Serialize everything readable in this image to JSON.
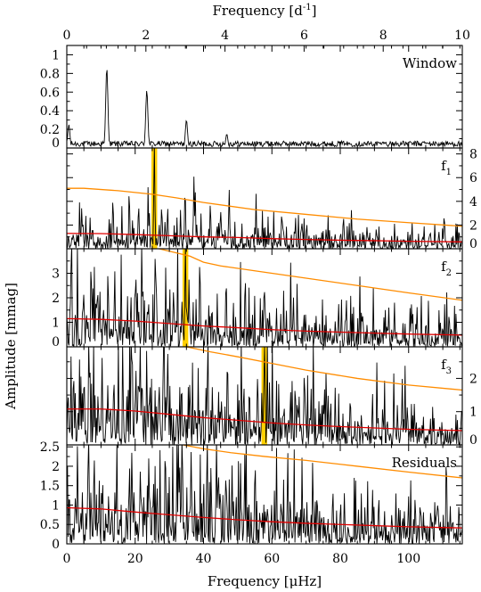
{
  "figure": {
    "top_axis_label": "Frequency [d",
    "top_axis_label_sup": "-1",
    "top_axis_label_end": "]",
    "bottom_axis_label": "Frequency [μHz]",
    "y_axis_label": "Amplitude [mmag]",
    "colors": {
      "spectrum": "#000000",
      "significance": "#ff8c00",
      "noise": "#e00000",
      "highlight": "#ffd000"
    }
  },
  "chart_data": [
    {
      "type": "line",
      "panel": "window",
      "label": "Window",
      "xlabel": "Frequency [μHz]",
      "xlim": [
        0,
        115.7
      ],
      "top_xlabel": "Frequency [d-1]",
      "top_xlim": [
        0,
        10
      ],
      "top_ticks": [
        0,
        2,
        4,
        6,
        8,
        10
      ],
      "ylim": [
        0,
        1.1
      ],
      "yticks": [
        0,
        0.2,
        0.4,
        0.6,
        0.8,
        1
      ],
      "ytick_side": "left",
      "peaks": [
        {
          "x": 0.6,
          "y": 0.25
        },
        {
          "x": 11.7,
          "y": 0.86
        },
        {
          "x": 23.4,
          "y": 0.62
        },
        {
          "x": 35.0,
          "y": 0.3
        },
        {
          "x": 46.8,
          "y": 0.15
        },
        {
          "x": 58.3,
          "y": 0.07
        },
        {
          "x": 70.0,
          "y": 0.05
        },
        {
          "x": 81.5,
          "y": 0.05
        },
        {
          "x": 93.0,
          "y": 0.06
        },
        {
          "x": 104.5,
          "y": 0.07
        }
      ],
      "noise_floor": 0.05
    },
    {
      "type": "line",
      "panel": "f1",
      "label": "f",
      "label_sub": "1",
      "ylim": [
        0,
        8.5
      ],
      "yticks": [
        0,
        2,
        4,
        6,
        8
      ],
      "ytick_side": "right",
      "highlight_x": 25.6,
      "peaks": [
        {
          "x": 25.6,
          "y": 9.0
        },
        {
          "x": 21.0,
          "y": 3.8
        },
        {
          "x": 13.5,
          "y": 4.3
        },
        {
          "x": 34.6,
          "y": 5.2
        },
        {
          "x": 37.2,
          "y": 6.1
        },
        {
          "x": 47.5,
          "y": 5.0
        },
        {
          "x": 45.0,
          "y": 3.2
        },
        {
          "x": 42.0,
          "y": 3.9
        },
        {
          "x": 29.5,
          "y": 3.5
        }
      ],
      "noise_floor": 1.3,
      "significance": {
        "x": [
          0,
          5,
          15,
          25,
          32,
          40,
          55,
          70,
          85,
          100,
          115.7
        ],
        "y": [
          5.1,
          5.1,
          4.9,
          4.6,
          4.3,
          3.9,
          3.3,
          2.9,
          2.5,
          2.2,
          1.9
        ]
      },
      "noise": {
        "x": [
          0,
          10,
          20,
          30,
          40,
          50,
          60,
          70,
          80,
          90,
          100,
          115.7
        ],
        "y": [
          1.3,
          1.28,
          1.2,
          1.1,
          1.0,
          0.95,
          0.85,
          0.78,
          0.72,
          0.68,
          0.63,
          0.58
        ]
      }
    },
    {
      "type": "line",
      "panel": "f2",
      "label": "f",
      "label_sub": "2",
      "ylim": [
        0,
        4
      ],
      "yticks": [
        0,
        1,
        2,
        3
      ],
      "ytick_side": "left",
      "highlight_x": 34.7,
      "peaks": [
        {
          "x": 34.7,
          "y": 4.3
        },
        {
          "x": 46.6,
          "y": 2.85
        },
        {
          "x": 57.9,
          "y": 2.35
        },
        {
          "x": 22.0,
          "y": 2.6
        },
        {
          "x": 20.0,
          "y": 2.3
        },
        {
          "x": 14.0,
          "y": 2.6
        },
        {
          "x": 9.0,
          "y": 2.5
        },
        {
          "x": 26.0,
          "y": 2.9
        },
        {
          "x": 5.0,
          "y": 2.2
        }
      ],
      "noise_floor": 1.1,
      "significance": {
        "x": [
          24,
          30,
          36,
          40,
          45,
          55,
          70,
          85,
          100,
          115.7
        ],
        "y": [
          4.1,
          3.9,
          3.7,
          3.45,
          3.3,
          3.1,
          2.8,
          2.5,
          2.2,
          1.9
        ]
      },
      "noise": {
        "x": [
          0,
          10,
          20,
          30,
          40,
          50,
          60,
          70,
          80,
          90,
          100,
          115.7
        ],
        "y": [
          1.15,
          1.12,
          1.05,
          0.95,
          0.85,
          0.78,
          0.7,
          0.64,
          0.6,
          0.56,
          0.52,
          0.48
        ]
      }
    },
    {
      "type": "line",
      "panel": "f3",
      "label": "f",
      "label_sub": "3",
      "ylim": [
        0,
        2.95
      ],
      "yticks": [
        0,
        1,
        2
      ],
      "ytick_side": "right",
      "highlight_x": 57.8,
      "peaks": [
        {
          "x": 57.8,
          "y": 3.1
        },
        {
          "x": 47.0,
          "y": 2.7
        },
        {
          "x": 69.5,
          "y": 2.3
        },
        {
          "x": 22.0,
          "y": 2.1
        },
        {
          "x": 27.0,
          "y": 1.9
        },
        {
          "x": 36.0,
          "y": 1.9
        },
        {
          "x": 5.0,
          "y": 1.75
        },
        {
          "x": 12.0,
          "y": 1.8
        }
      ],
      "noise_floor": 1.0,
      "significance": {
        "x": [
          28,
          35,
          42,
          50,
          60,
          70,
          85,
          100,
          115.7
        ],
        "y": [
          3.05,
          2.95,
          2.8,
          2.65,
          2.45,
          2.25,
          2.0,
          1.8,
          1.65
        ]
      },
      "noise": {
        "x": [
          0,
          10,
          20,
          30,
          40,
          50,
          60,
          70,
          80,
          90,
          100,
          115.7
        ],
        "y": [
          1.08,
          1.08,
          1.02,
          0.92,
          0.82,
          0.74,
          0.66,
          0.6,
          0.55,
          0.51,
          0.47,
          0.43
        ]
      }
    },
    {
      "type": "line",
      "panel": "residuals",
      "label": "Residuals",
      "ylim": [
        0,
        2.55
      ],
      "yticks": [
        0,
        0.5,
        1,
        1.5,
        2,
        2.5
      ],
      "ytick_side": "left",
      "xticks": [
        0,
        20,
        40,
        60,
        80,
        100
      ],
      "peaks": [
        {
          "x": 8.0,
          "y": 2.3
        },
        {
          "x": 19.0,
          "y": 2.35
        },
        {
          "x": 24.0,
          "y": 2.25
        },
        {
          "x": 33.0,
          "y": 2.1
        },
        {
          "x": 41.0,
          "y": 1.9
        },
        {
          "x": 55.0,
          "y": 1.6
        }
      ],
      "noise_floor": 0.92,
      "significance": {
        "x": [
          34,
          40,
          48,
          58,
          70,
          85,
          100,
          115.7
        ],
        "y": [
          2.55,
          2.45,
          2.35,
          2.25,
          2.15,
          2.0,
          1.85,
          1.7
        ]
      },
      "noise": {
        "x": [
          0,
          10,
          20,
          30,
          40,
          50,
          60,
          70,
          80,
          90,
          100,
          115.7
        ],
        "y": [
          0.93,
          0.9,
          0.82,
          0.75,
          0.68,
          0.62,
          0.57,
          0.53,
          0.5,
          0.47,
          0.44,
          0.41
        ]
      }
    }
  ]
}
